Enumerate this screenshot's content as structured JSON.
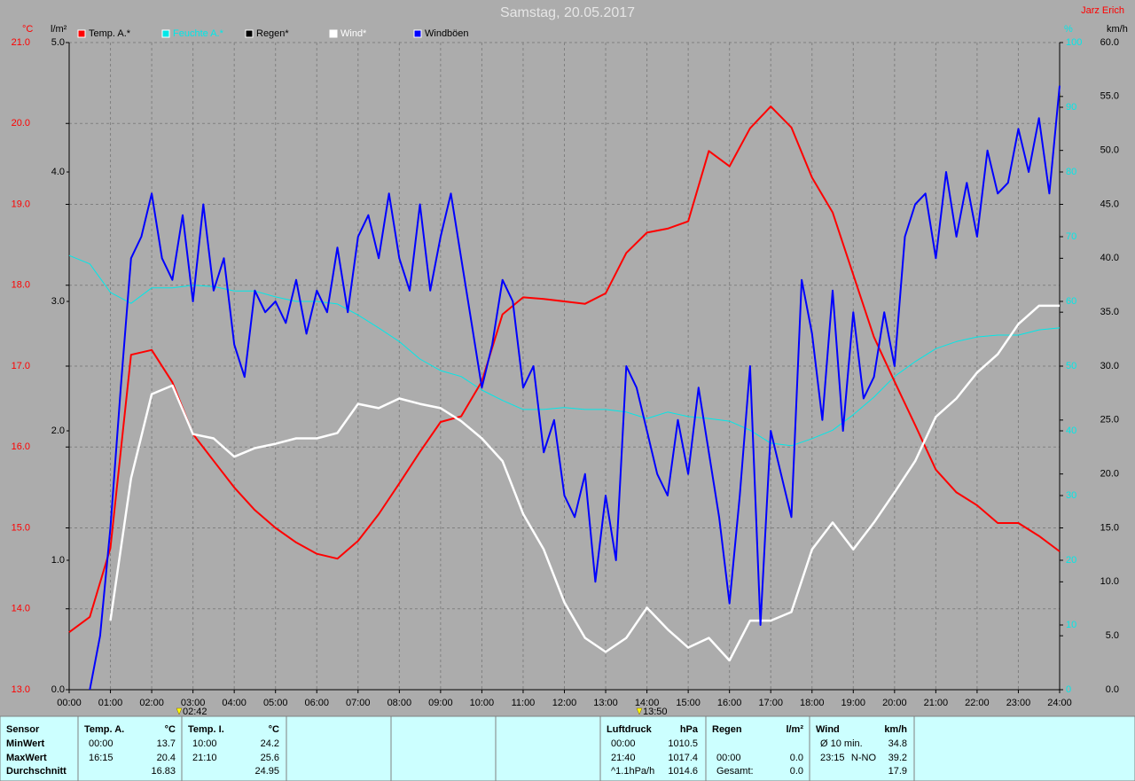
{
  "chart_data": {
    "type": "line",
    "title": "Samstag, 20.05.2017",
    "author": "Jarz Erich",
    "xlim": [
      0,
      24
    ],
    "xticks": [
      {
        "value": 0,
        "label": "00:00"
      },
      {
        "value": 1,
        "label": "01:00"
      },
      {
        "value": 2,
        "label": "02:00"
      },
      {
        "value": 3,
        "label": "03:00"
      },
      {
        "value": 4,
        "label": "04:00"
      },
      {
        "value": 5,
        "label": "05:00"
      },
      {
        "value": 6,
        "label": "06:00"
      },
      {
        "value": 7,
        "label": "07:00"
      },
      {
        "value": 8,
        "label": "08:00"
      },
      {
        "value": 9,
        "label": "09:00"
      },
      {
        "value": 10,
        "label": "10:00"
      },
      {
        "value": 11,
        "label": "11:00"
      },
      {
        "value": 12,
        "label": "12:00"
      },
      {
        "value": 13,
        "label": "13:00"
      },
      {
        "value": 14,
        "label": "14:00"
      },
      {
        "value": 15,
        "label": "15:00"
      },
      {
        "value": 16,
        "label": "16:00"
      },
      {
        "value": 17,
        "label": "17:00"
      },
      {
        "value": 18,
        "label": "18:00"
      },
      {
        "value": 19,
        "label": "19:00"
      },
      {
        "value": 20,
        "label": "20:00"
      },
      {
        "value": 21,
        "label": "21:00"
      },
      {
        "value": 22,
        "label": "22:00"
      },
      {
        "value": 23,
        "label": "23:00"
      },
      {
        "value": 24,
        "label": "24:00"
      }
    ],
    "grid": true,
    "markers": [
      "02:42",
      "13:50"
    ],
    "axes": {
      "temp": {
        "label": "°C",
        "color": "#ff0000",
        "lim": [
          13,
          21
        ],
        "ticks": [
          {
            "value": 13,
            "label": "13.0"
          },
          {
            "value": 14,
            "label": "14.0"
          },
          {
            "value": 15,
            "label": "15.0"
          },
          {
            "value": 16,
            "label": "16.0"
          },
          {
            "value": 17,
            "label": "17.0"
          },
          {
            "value": 18,
            "label": "18.0"
          },
          {
            "value": 19,
            "label": "19.0"
          },
          {
            "value": 20,
            "label": "20.0"
          },
          {
            "value": 21,
            "label": "21.0"
          }
        ]
      },
      "rain": {
        "label": "l/m²",
        "color": "#000000",
        "lim": [
          0,
          5
        ],
        "ticks": [
          {
            "value": 0,
            "label": "0.0"
          },
          {
            "value": 1,
            "label": "1.0"
          },
          {
            "value": 2,
            "label": "2.0"
          },
          {
            "value": 3,
            "label": "3.0"
          },
          {
            "value": 4,
            "label": "4.0"
          },
          {
            "value": 5,
            "label": "5.0"
          }
        ]
      },
      "humidity": {
        "label": "%",
        "color": "#00e8e8",
        "lim": [
          0,
          100
        ],
        "ticks": [
          0,
          10,
          20,
          30,
          40,
          50,
          60,
          70,
          80,
          90,
          100
        ]
      },
      "wind": {
        "label": "km/h",
        "color": "#000000",
        "lim": [
          0,
          60
        ],
        "ticks": [
          {
            "value": 0,
            "label": "0.0"
          },
          {
            "value": 5,
            "label": "5.0"
          },
          {
            "value": 10,
            "label": "10.0"
          },
          {
            "value": 15,
            "label": "15.0"
          },
          {
            "value": 20,
            "label": "20.0"
          },
          {
            "value": 25,
            "label": "25.0"
          },
          {
            "value": 30,
            "label": "30.0"
          },
          {
            "value": 35,
            "label": "35.0"
          },
          {
            "value": 40,
            "label": "40.0"
          },
          {
            "value": 45,
            "label": "45.0"
          },
          {
            "value": 50,
            "label": "50.0"
          },
          {
            "value": 55,
            "label": "55.0"
          },
          {
            "value": 60,
            "label": "60.0"
          }
        ]
      }
    },
    "series": [
      {
        "name": "Temp. A.*",
        "color": "#ff0000",
        "axis": "temp",
        "x": [
          0,
          0.5,
          1,
          1.5,
          2,
          2.5,
          3,
          3.5,
          4,
          4.5,
          5,
          5.5,
          6,
          6.5,
          7,
          7.5,
          8,
          8.5,
          9,
          9.5,
          10,
          10.5,
          11,
          11.5,
          12,
          12.5,
          13,
          13.5,
          14,
          14.5,
          15,
          15.5,
          16,
          16.5,
          17,
          17.5,
          18,
          18.5,
          19,
          19.5,
          20,
          20.5,
          21,
          21.5,
          22,
          22.5,
          23,
          23.5,
          24
        ],
        "values": [
          13.71,
          13.9,
          14.75,
          17.14,
          17.2,
          16.8,
          16.16,
          15.83,
          15.5,
          15.22,
          15.0,
          14.82,
          14.68,
          14.62,
          14.84,
          15.17,
          15.55,
          15.94,
          16.31,
          16.38,
          16.81,
          17.64,
          17.85,
          17.83,
          17.8,
          17.77,
          17.9,
          18.4,
          18.65,
          18.7,
          18.79,
          19.66,
          19.47,
          19.94,
          20.21,
          19.95,
          19.33,
          18.9,
          18.13,
          17.36,
          16.81,
          16.27,
          15.72,
          15.44,
          15.28,
          15.06,
          15.06,
          14.9,
          14.71
        ]
      },
      {
        "name": "Feuchte A.*",
        "color": "#00e8e8",
        "axis": "humidity",
        "x": [
          0,
          0.5,
          1,
          1.5,
          2,
          2.5,
          3,
          3.5,
          4,
          4.5,
          5,
          5.5,
          6,
          6.5,
          7,
          7.5,
          8,
          8.5,
          9,
          9.5,
          10,
          10.5,
          11,
          11.5,
          12,
          12.5,
          13,
          13.5,
          14,
          14.5,
          15,
          15.5,
          16,
          16.5,
          17,
          17.5,
          18,
          18.5,
          19,
          19.5,
          20,
          20.5,
          21,
          21.5,
          22,
          22.5,
          23,
          23.5,
          24
        ],
        "values": [
          67.1,
          65.8,
          61.4,
          59.7,
          62.1,
          62.1,
          62.5,
          62.3,
          61.6,
          61.6,
          60.7,
          60,
          60,
          59.6,
          57.9,
          55.9,
          53.8,
          51.1,
          49.3,
          48.4,
          46.3,
          44.7,
          43.3,
          43.3,
          43.6,
          43.3,
          43.3,
          42.9,
          41.9,
          42.9,
          42.2,
          41.9,
          41.5,
          40.1,
          38.1,
          37.7,
          38.8,
          40.1,
          42.5,
          45.2,
          48.4,
          50.7,
          52.7,
          53.8,
          54.5,
          54.8,
          54.8,
          55.6,
          55.9
        ]
      },
      {
        "name": "Regen*",
        "color": "#000000",
        "axis": "rain",
        "x": [
          0,
          24
        ],
        "values": [
          0,
          0
        ]
      },
      {
        "name": "Wind*",
        "color": "#ffffff",
        "axis": "wind",
        "x": [
          0,
          0.5,
          1,
          1.5,
          2,
          2.5,
          3,
          3.5,
          4,
          4.5,
          5,
          5.5,
          6,
          6.5,
          7,
          7.5,
          8,
          8.5,
          9,
          9.5,
          10,
          10.5,
          11,
          11.5,
          12,
          12.5,
          13,
          13.5,
          14,
          14.5,
          15,
          15.5,
          16,
          16.5,
          17,
          17.5,
          18,
          18.5,
          19,
          19.5,
          20,
          20.5,
          21,
          21.5,
          22,
          22.5,
          23,
          23.5,
          24
        ],
        "values": [
          null,
          null,
          6.4,
          19.6,
          27.4,
          28.2,
          23.7,
          23.3,
          21.6,
          22.4,
          22.8,
          23.3,
          23.3,
          23.8,
          26.5,
          26.1,
          27,
          26.5,
          26.1,
          24.9,
          23.3,
          21.2,
          16.3,
          13,
          8.1,
          4.8,
          3.5,
          4.8,
          7.6,
          5.6,
          3.9,
          4.8,
          2.7,
          6.4,
          6.4,
          7.2,
          13,
          15.5,
          13,
          15.5,
          18.3,
          21.2,
          25.3,
          27,
          29.4,
          31.1,
          33.9,
          35.6,
          35.6
        ]
      },
      {
        "name": "Windböen",
        "color": "#0000ff",
        "axis": "wind",
        "x": [
          0.5,
          0.75,
          1,
          1.25,
          1.5,
          1.75,
          2,
          2.25,
          2.5,
          2.75,
          3,
          3.25,
          3.5,
          3.75,
          4,
          4.25,
          4.5,
          4.75,
          5,
          5.25,
          5.5,
          5.75,
          6,
          6.25,
          6.5,
          6.75,
          7,
          7.25,
          7.5,
          7.75,
          8,
          8.25,
          8.5,
          8.75,
          9,
          9.25,
          9.5,
          9.75,
          10,
          10.25,
          10.5,
          10.75,
          11,
          11.25,
          11.5,
          11.75,
          12,
          12.25,
          12.5,
          12.75,
          13,
          13.25,
          13.5,
          13.75,
          14,
          14.25,
          14.5,
          14.75,
          15,
          15.25,
          15.5,
          15.75,
          16,
          16.25,
          16.5,
          16.75,
          17,
          17.25,
          17.5,
          17.75,
          18,
          18.25,
          18.5,
          18.75,
          19,
          19.25,
          19.5,
          19.75,
          20,
          20.25,
          20.5,
          20.75,
          21,
          21.25,
          21.5,
          21.75,
          22,
          22.25,
          22.5,
          22.75,
          23,
          23.25,
          23.5,
          23.75,
          24
        ],
        "values": [
          0,
          5,
          15,
          28,
          40,
          42,
          46,
          40,
          38,
          44,
          36,
          45,
          37,
          40,
          32,
          29,
          37,
          35,
          36,
          34,
          38,
          33,
          37,
          35,
          41,
          35,
          42,
          44,
          40,
          46,
          40,
          37,
          45,
          37,
          42,
          46,
          40,
          34,
          28,
          32,
          38,
          36,
          28,
          30,
          22,
          25,
          18,
          16,
          20,
          10,
          18,
          12,
          30,
          28,
          24,
          20,
          18,
          25,
          20,
          28,
          22,
          16,
          8,
          18,
          30,
          6,
          24,
          20,
          16,
          38,
          33,
          25,
          37,
          24,
          35,
          27,
          29,
          35,
          30,
          42,
          45,
          46,
          40,
          48,
          42,
          47,
          42,
          50,
          46,
          47,
          52,
          48,
          53,
          46,
          56
        ]
      }
    ]
  },
  "stats": {
    "row_labels": [
      "Sensor",
      "MinWert",
      "MaxWert",
      "Durchschnitt"
    ],
    "blocks": [
      {
        "title": "Temp. A.",
        "unit": "°C",
        "rows": [
          [
            "00:00",
            "13.7"
          ],
          [
            "16:15",
            "20.4"
          ],
          [
            "16.83"
          ]
        ]
      },
      {
        "title": "Temp. I.",
        "unit": "°C",
        "rows": [
          [
            "10:00",
            "24.2"
          ],
          [
            "21:10",
            "25.6"
          ],
          [
            "24.95"
          ]
        ]
      },
      {
        "title": "Luftdruck",
        "unit": "hPa",
        "rows": [
          [
            "00:00",
            "1010.5"
          ],
          [
            "21:40",
            "1017.4"
          ],
          [
            "^1.1hPa/h",
            "1014.6"
          ]
        ]
      },
      {
        "title": "Regen",
        "unit": "l/m²",
        "rows": [
          null,
          [
            "00:00",
            "0.0"
          ],
          [
            "Gesamt:",
            "0.0"
          ]
        ]
      },
      {
        "title": "Wind",
        "unit": "km/h",
        "rows": [
          [
            "Ø 10 min.",
            "34.8"
          ],
          [
            "23:15",
            "N-NO",
            "39.2"
          ],
          [
            "17.9"
          ]
        ]
      }
    ]
  }
}
